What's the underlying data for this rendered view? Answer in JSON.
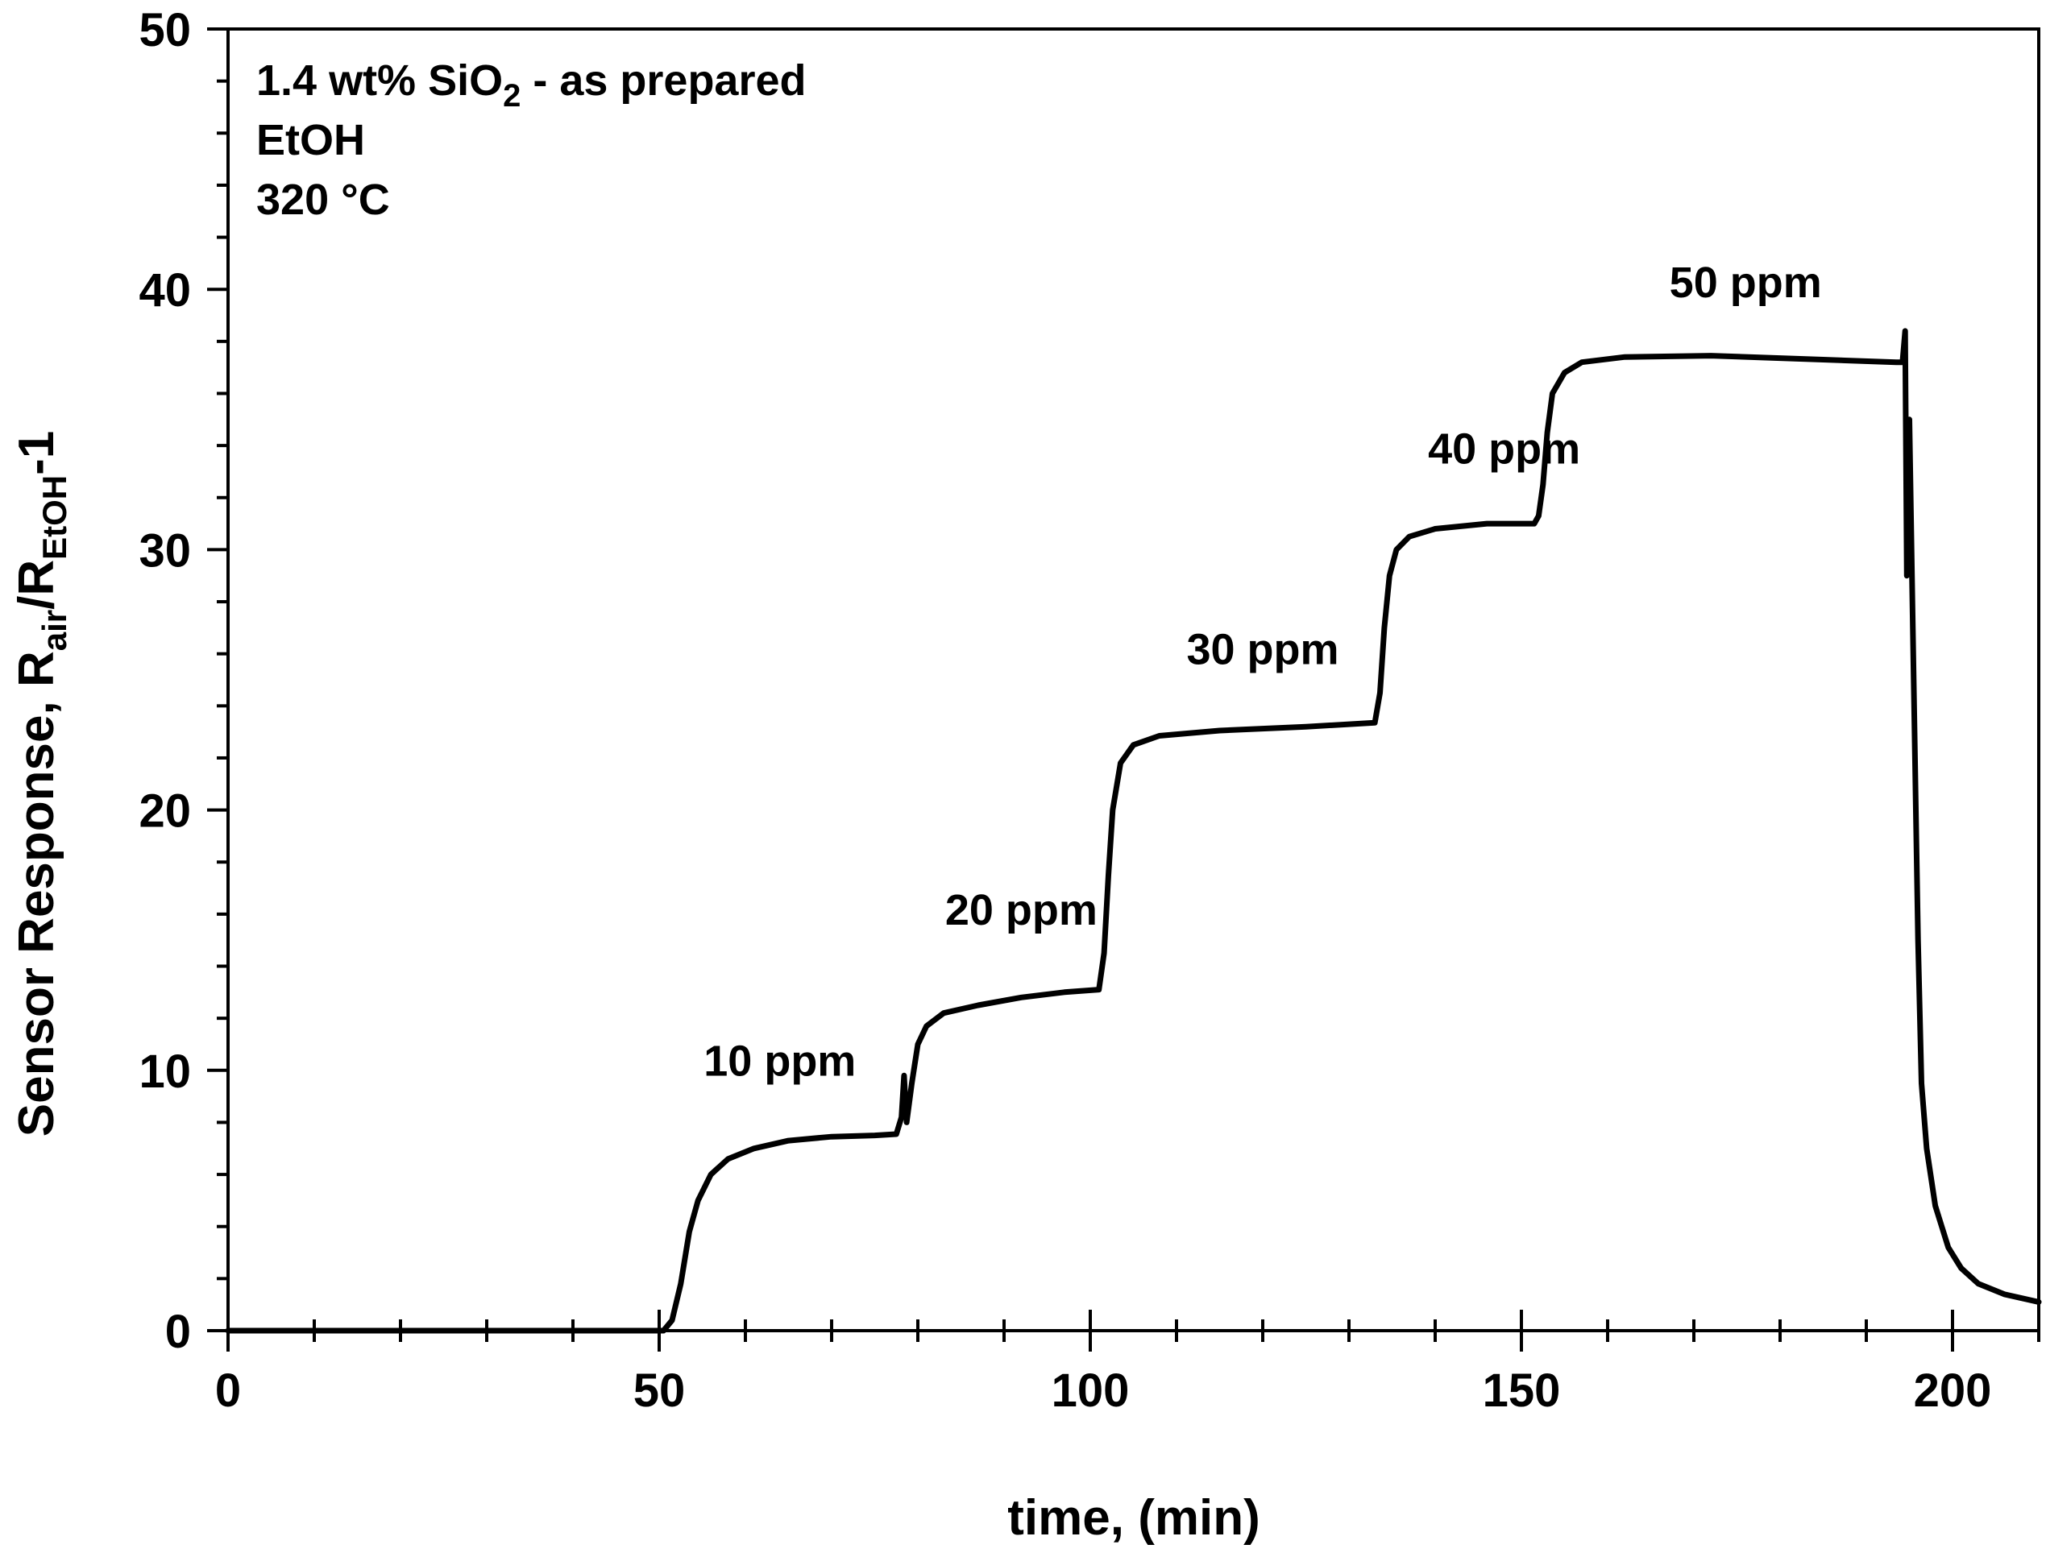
{
  "chart_data": {
    "type": "line",
    "title": "",
    "annotations": {
      "line1_prefix": "1.4 wt% SiO",
      "line1_sub": "2",
      "line1_suffix": " - as prepared",
      "line2": "EtOH",
      "line3": "320 °C"
    },
    "xlabel": "time, (min)",
    "ylabel": {
      "main": "Sensor Response, R",
      "sub1": "air",
      "mid": "/R",
      "sub2": "EtOH",
      "end": "-1"
    },
    "xlim": [
      0,
      210
    ],
    "ylim": [
      0,
      50
    ],
    "x_ticks": [
      0,
      50,
      100,
      150,
      200
    ],
    "x_tick_labels": [
      "0",
      "50",
      "100",
      "150",
      "200"
    ],
    "y_ticks": [
      0,
      10,
      20,
      30,
      40,
      50
    ],
    "y_tick_labels": [
      "0",
      "10",
      "20",
      "30",
      "40",
      "50"
    ],
    "grid": false,
    "step_labels": [
      {
        "text": "10 ppm",
        "x": 64,
        "y": 9.8
      },
      {
        "text": "20 ppm",
        "x": 92,
        "y": 15.6
      },
      {
        "text": "30 ppm",
        "x": 120,
        "y": 25.6
      },
      {
        "text": "40 ppm",
        "x": 148,
        "y": 33.3
      },
      {
        "text": "50 ppm",
        "x": 176,
        "y": 39.7
      }
    ],
    "series": [
      {
        "name": "EtOH response",
        "color": "#000000",
        "points": [
          [
            0,
            0
          ],
          [
            25,
            0
          ],
          [
            50.5,
            0
          ],
          [
            51.5,
            0.4
          ],
          [
            52.5,
            1.8
          ],
          [
            53.5,
            3.8
          ],
          [
            54.5,
            5.0
          ],
          [
            56,
            6.0
          ],
          [
            58,
            6.6
          ],
          [
            61,
            7.0
          ],
          [
            65,
            7.3
          ],
          [
            70,
            7.45
          ],
          [
            75,
            7.5
          ],
          [
            77.5,
            7.55
          ],
          [
            78.1,
            8.2
          ],
          [
            78.4,
            9.8
          ],
          [
            78.7,
            8.0
          ],
          [
            79.3,
            9.5
          ],
          [
            80,
            11.0
          ],
          [
            81,
            11.7
          ],
          [
            83,
            12.2
          ],
          [
            87,
            12.5
          ],
          [
            92,
            12.8
          ],
          [
            97,
            13.0
          ],
          [
            101,
            13.1
          ],
          [
            101.6,
            14.5
          ],
          [
            102.1,
            17.5
          ],
          [
            102.6,
            20.0
          ],
          [
            103.5,
            21.8
          ],
          [
            105,
            22.5
          ],
          [
            108,
            22.85
          ],
          [
            115,
            23.05
          ],
          [
            125,
            23.2
          ],
          [
            133,
            23.35
          ],
          [
            133.6,
            24.5
          ],
          [
            134.1,
            27.0
          ],
          [
            134.7,
            29.0
          ],
          [
            135.5,
            30.0
          ],
          [
            137,
            30.5
          ],
          [
            140,
            30.8
          ],
          [
            146,
            31.0
          ],
          [
            151.5,
            31.0
          ],
          [
            152,
            31.3
          ],
          [
            152.5,
            32.5
          ],
          [
            153,
            34.5
          ],
          [
            153.6,
            36.0
          ],
          [
            155,
            36.8
          ],
          [
            157,
            37.2
          ],
          [
            162,
            37.4
          ],
          [
            172,
            37.45
          ],
          [
            185,
            37.3
          ],
          [
            193.5,
            37.2
          ],
          [
            194.2,
            37.2
          ],
          [
            194.5,
            38.4
          ],
          [
            194.7,
            29.0
          ],
          [
            195,
            35.0
          ],
          [
            195.5,
            25.0
          ],
          [
            196,
            15.0
          ],
          [
            196.4,
            9.5
          ],
          [
            197,
            7.0
          ],
          [
            198,
            4.8
          ],
          [
            199.5,
            3.2
          ],
          [
            201,
            2.4
          ],
          [
            203,
            1.8
          ],
          [
            206,
            1.4
          ],
          [
            210,
            1.1
          ]
        ]
      }
    ]
  }
}
